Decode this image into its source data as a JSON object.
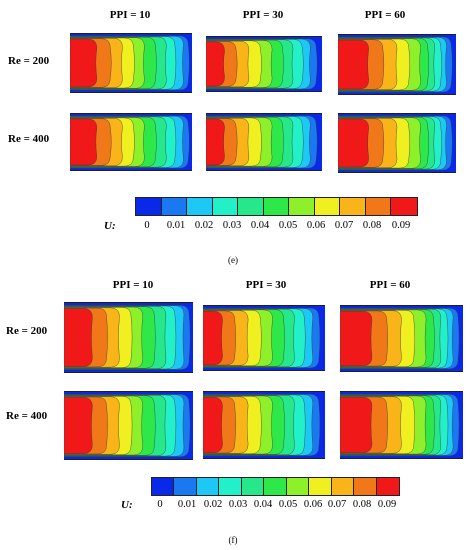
{
  "palette": [
    "#0a28e8",
    "#1a78f0",
    "#1ec8f4",
    "#22f0c8",
    "#26e88a",
    "#2ee84a",
    "#8ef02a",
    "#f0f020",
    "#f8b418",
    "#f07818",
    "#f01818"
  ],
  "figures": [
    {
      "id": "e",
      "caption": "(e)",
      "columns": [
        "PPI = 10",
        "PPI = 30",
        "PPI = 60"
      ],
      "rows": [
        "Re = 200",
        "Re = 400"
      ],
      "colorbar": {
        "symbol": "U:",
        "ticks": [
          "0",
          "0.01",
          "0.02",
          "0.03",
          "0.04",
          "0.05",
          "0.06",
          "0.07",
          "0.08",
          "0.09"
        ]
      }
    },
    {
      "id": "f",
      "caption": "(f)",
      "columns": [
        "PPI = 10",
        "PPI = 30",
        "PPI = 60"
      ],
      "rows": [
        "Re = 200",
        "Re = 400"
      ],
      "colorbar": {
        "symbol": "U:",
        "ticks": [
          "0",
          "0.01",
          "0.02",
          "0.03",
          "0.04",
          "0.05",
          "0.06",
          "0.07",
          "0.08",
          "0.09"
        ]
      }
    }
  ]
}
